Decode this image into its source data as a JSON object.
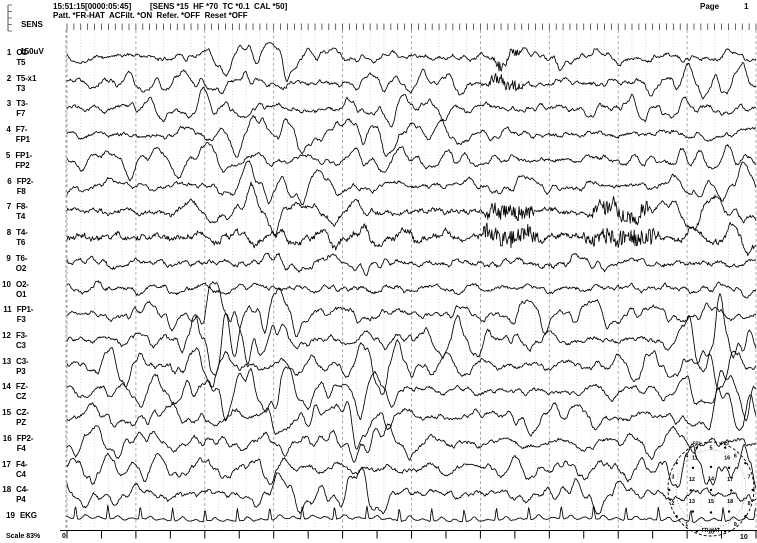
{
  "header": {
    "sens_label": "SENS",
    "sens_value": "150uV",
    "gain": "x1",
    "timestamp": "15:51:15[0000:05:45]",
    "filter_settings": "[SENS *15  HF *70  TC *0.1  CAL *50]",
    "pattern_line": "Patt. *FR-HAT  ACFilt. *ON  Refer. *OFF  Reset *OFF",
    "page_label": "Page",
    "page_number": "1"
  },
  "channels": [
    {
      "num": 1,
      "label": "O1-T5"
    },
    {
      "num": 2,
      "label": "T5-T3"
    },
    {
      "num": 3,
      "label": "T3-F7"
    },
    {
      "num": 4,
      "label": "F7-FP1"
    },
    {
      "num": 5,
      "label": "FP1-FP2"
    },
    {
      "num": 6,
      "label": "FP2-F8"
    },
    {
      "num": 7,
      "label": "F8-T4"
    },
    {
      "num": 8,
      "label": "T4-T6"
    },
    {
      "num": 9,
      "label": "T6-O2"
    },
    {
      "num": 10,
      "label": "O2-O1"
    },
    {
      "num": 11,
      "label": "FP1-F3"
    },
    {
      "num": 12,
      "label": "F3-C3"
    },
    {
      "num": 13,
      "label": "C3-P3"
    },
    {
      "num": 14,
      "label": "FZ-CZ"
    },
    {
      "num": 15,
      "label": "CZ-PZ"
    },
    {
      "num": 16,
      "label": "FP2-F4"
    },
    {
      "num": 17,
      "label": "F4-C4"
    },
    {
      "num": 18,
      "label": "C4-P4"
    },
    {
      "num": 19,
      "label": "EKG"
    }
  ],
  "footer": {
    "scale_label": "Scale 83%",
    "axis_start": "0",
    "axis_end": "10"
  },
  "timebase": {
    "seconds": 10,
    "minor_div_sec": 0.2,
    "major_div_sec": 1
  },
  "colors": {
    "background": "#ffffff",
    "trace": "#000000",
    "grid_minor": "#c9c9c9",
    "grid_major": "#979797",
    "axis": "#000000"
  },
  "montage_map": {
    "name": "FR-HAT",
    "labeled_electrodes": [
      "FP1",
      "FP2"
    ],
    "electrodes": {
      "FP1": [
        -0.33,
        -0.88
      ],
      "FP2": [
        0.33,
        -0.88
      ],
      "F7": [
        -0.8,
        -0.55
      ],
      "F8": [
        0.8,
        -0.55
      ],
      "T3": [
        -0.97,
        0.02
      ],
      "T4": [
        0.97,
        0.02
      ],
      "T5": [
        -0.8,
        0.58
      ],
      "T6": [
        0.8,
        0.58
      ],
      "O1": [
        -0.33,
        0.9
      ],
      "O2": [
        0.33,
        0.9
      ],
      "F3": [
        -0.42,
        -0.45
      ],
      "F4": [
        0.42,
        -0.45
      ],
      "FZ": [
        0,
        -0.47
      ],
      "C3": [
        -0.47,
        0.03
      ],
      "CZ": [
        0,
        0.02
      ],
      "C4": [
        0.47,
        0.03
      ],
      "P3": [
        -0.42,
        0.48
      ],
      "P4": [
        0.42,
        0.48
      ],
      "PZ": [
        0,
        0.5
      ]
    }
  },
  "waveforms": {
    "seed": 1337,
    "bursts": [
      [
        2.7,
        0.85,
        1.35
      ],
      [
        4.35,
        0.45,
        1.0
      ],
      [
        9.55,
        0.65,
        1.15
      ]
    ],
    "channels": [
      {
        "amp": 9,
        "burst": 0.55,
        "base_hf": 0.4,
        "hf_windows": [
          [
            6.15,
            6.6,
            5
          ]
        ]
      },
      {
        "amp": 9,
        "burst": 0.5,
        "base_hf": 0.4,
        "hf_windows": [
          [
            6.1,
            6.65,
            6
          ]
        ]
      },
      {
        "amp": 8.5,
        "burst": 0.7,
        "base_hf": 0.3,
        "hf_windows": []
      },
      {
        "amp": 10,
        "burst": 0.9,
        "base_hf": 0.3,
        "hf_windows": []
      },
      {
        "amp": 10,
        "burst": 0.85,
        "base_hf": 0.3,
        "hf_windows": []
      },
      {
        "amp": 9,
        "burst": 0.8,
        "base_hf": 0.3,
        "hf_windows": []
      },
      {
        "amp": 8,
        "burst": 0.6,
        "base_hf": 1.1,
        "hf_windows": [
          [
            6.05,
            6.8,
            7
          ],
          [
            7.55,
            8.5,
            6.5
          ]
        ]
      },
      {
        "amp": 8,
        "burst": 0.45,
        "base_hf": 2.0,
        "hf_windows": [
          [
            6.0,
            6.9,
            8
          ],
          [
            7.45,
            8.6,
            7.5
          ]
        ]
      },
      {
        "amp": 7.5,
        "burst": 0.5,
        "base_hf": 0.8,
        "hf_windows": []
      },
      {
        "amp": 4.5,
        "burst": 0.35,
        "base_hf": 0.3,
        "hf_windows": []
      },
      {
        "amp": 12,
        "burst": 1.1,
        "base_hf": 0.3,
        "hf_windows": []
      },
      {
        "amp": 13,
        "burst": 1.15,
        "base_hf": 0.3,
        "hf_windows": []
      },
      {
        "amp": 12.5,
        "burst": 1.05,
        "base_hf": 0.3,
        "hf_windows": []
      },
      {
        "amp": 11.5,
        "burst": 1.0,
        "base_hf": 0.3,
        "hf_windows": []
      },
      {
        "amp": 12.5,
        "burst": 1.05,
        "base_hf": 0.3,
        "hf_windows": []
      },
      {
        "amp": 11,
        "burst": 0.95,
        "base_hf": 0.3,
        "hf_windows": []
      },
      {
        "amp": 11,
        "burst": 0.9,
        "base_hf": 0.3,
        "hf_windows": []
      },
      {
        "amp": 10.5,
        "burst": 0.9,
        "base_hf": 0.3,
        "hf_windows": []
      },
      {
        "ekg": true,
        "rate_period": 0.47,
        "r_amp": 13.5
      }
    ]
  }
}
